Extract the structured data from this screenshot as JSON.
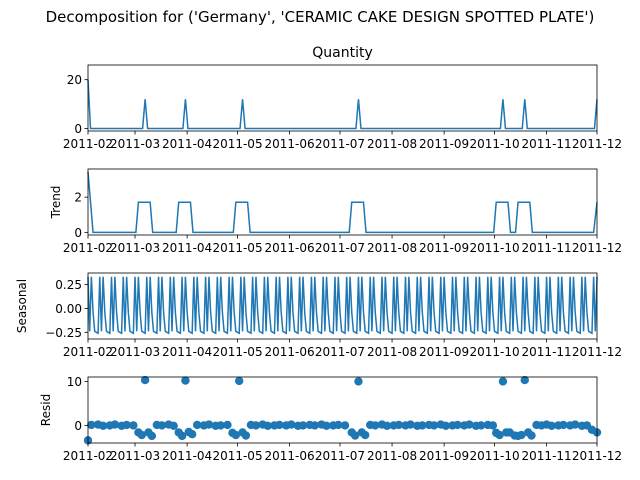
{
  "title": "Decomposition for ('Germany', 'CERAMIC CAKE DESIGN SPOTTED PLATE')",
  "x_tick_labels": [
    "2011-02",
    "2011-03",
    "2011-04",
    "2011-05",
    "2011-06",
    "2011-07",
    "2011-08",
    "2011-09",
    "2011-10",
    "2011-11",
    "2011-12"
  ],
  "colors": {
    "series": "#1f77b4"
  },
  "chart_data": [
    {
      "type": "line",
      "title": "Quantity",
      "ylabel": "",
      "xlim": [
        "2011-02-01",
        "2011-12-01"
      ],
      "ylim": [
        -1,
        26
      ],
      "yticks": [
        0,
        20
      ],
      "ytick_labels": [
        "0",
        "20"
      ],
      "x": [
        "2011-02-01",
        "2011-03-07",
        "2011-03-31",
        "2011-05-04",
        "2011-07-12",
        "2011-10-06",
        "2011-10-19",
        "2011-12-01"
      ],
      "values": [
        20,
        12,
        12,
        12,
        12,
        12,
        12,
        12
      ],
      "note_baseline": 0
    },
    {
      "type": "line",
      "title": "",
      "ylabel": "Trend",
      "xlim": [
        "2011-02-01",
        "2011-12-01"
      ],
      "ylim": [
        -0.15,
        3.6
      ],
      "yticks": [
        0,
        2
      ],
      "ytick_labels": [
        "0",
        "2"
      ],
      "plateaus": [
        {
          "start": "2011-03-03",
          "end": "2011-03-10",
          "value": 1.71
        },
        {
          "start": "2011-03-27",
          "end": "2011-04-03",
          "value": 1.71
        },
        {
          "start": "2011-04-30",
          "end": "2011-05-07",
          "value": 1.71
        },
        {
          "start": "2011-07-08",
          "end": "2011-07-15",
          "value": 1.71
        },
        {
          "start": "2011-10-02",
          "end": "2011-10-09",
          "value": 1.71
        },
        {
          "start": "2011-10-15",
          "end": "2011-10-22",
          "value": 1.71
        }
      ],
      "start_value": 3.43,
      "end_value": 1.71
    },
    {
      "type": "line",
      "title": "",
      "ylabel": "Seasonal",
      "xlim": [
        "2011-02-01",
        "2011-12-01"
      ],
      "ylim": [
        -0.32,
        0.37
      ],
      "yticks": [
        -0.25,
        0.0,
        0.25
      ],
      "ytick_labels": [
        "−0.25",
        "0.00",
        "0.25"
      ],
      "period_days": 7,
      "weekly_pattern": [
        0.33,
        -0.24,
        0.33,
        -0.04,
        -0.24,
        -0.25,
        -0.26
      ]
    },
    {
      "type": "scatter",
      "title": "",
      "ylabel": "Resid",
      "xlim": [
        "2011-02-01",
        "2011-12-01"
      ],
      "ylim": [
        -4,
        11
      ],
      "yticks": [
        0,
        10
      ],
      "ytick_labels": [
        "0",
        "10"
      ],
      "x": [
        "2011-02-01",
        "2011-02-03",
        "2011-02-07",
        "2011-02-10",
        "2011-02-14",
        "2011-02-17",
        "2011-02-21",
        "2011-02-24",
        "2011-02-28",
        "2011-03-03",
        "2011-03-05",
        "2011-03-07",
        "2011-03-09",
        "2011-03-11",
        "2011-03-14",
        "2011-03-17",
        "2011-03-21",
        "2011-03-24",
        "2011-03-27",
        "2011-03-29",
        "2011-03-31",
        "2011-04-02",
        "2011-04-04",
        "2011-04-07",
        "2011-04-11",
        "2011-04-14",
        "2011-04-18",
        "2011-04-21",
        "2011-04-25",
        "2011-04-28",
        "2011-04-30",
        "2011-05-02",
        "2011-05-04",
        "2011-05-06",
        "2011-05-09",
        "2011-05-12",
        "2011-05-16",
        "2011-05-19",
        "2011-05-23",
        "2011-05-26",
        "2011-05-30",
        "2011-06-02",
        "2011-06-06",
        "2011-06-09",
        "2011-06-13",
        "2011-06-16",
        "2011-06-20",
        "2011-06-23",
        "2011-06-27",
        "2011-06-30",
        "2011-07-04",
        "2011-07-08",
        "2011-07-10",
        "2011-07-12",
        "2011-07-14",
        "2011-07-16",
        "2011-07-19",
        "2011-07-22",
        "2011-07-26",
        "2011-07-29",
        "2011-08-02",
        "2011-08-05",
        "2011-08-09",
        "2011-08-12",
        "2011-08-16",
        "2011-08-19",
        "2011-08-23",
        "2011-08-26",
        "2011-08-30",
        "2011-09-02",
        "2011-09-06",
        "2011-09-09",
        "2011-09-13",
        "2011-09-16",
        "2011-09-20",
        "2011-09-23",
        "2011-09-27",
        "2011-09-30",
        "2011-10-02",
        "2011-10-04",
        "2011-10-06",
        "2011-10-08",
        "2011-10-10",
        "2011-10-13",
        "2011-10-15",
        "2011-10-17",
        "2011-10-19",
        "2011-10-21",
        "2011-10-23",
        "2011-10-26",
        "2011-10-29",
        "2011-11-01",
        "2011-11-04",
        "2011-11-08",
        "2011-11-11",
        "2011-11-15",
        "2011-11-18",
        "2011-11-22",
        "2011-11-25",
        "2011-11-28",
        "2011-12-01"
      ],
      "values": [
        -3.4,
        0.1,
        0.2,
        -0.1,
        0.0,
        0.2,
        -0.1,
        0.1,
        0.0,
        -1.6,
        -2.2,
        10.3,
        -1.6,
        -2.4,
        0.1,
        0.0,
        0.2,
        -0.1,
        -1.6,
        -2.4,
        10.2,
        -1.5,
        -2.0,
        0.1,
        0.0,
        0.2,
        -0.1,
        0.0,
        0.1,
        -1.7,
        -2.2,
        10.1,
        -1.6,
        -2.3,
        0.1,
        0.0,
        0.2,
        -0.1,
        0.0,
        0.1,
        0.0,
        0.2,
        -0.1,
        0.0,
        0.1,
        0.0,
        0.2,
        -0.1,
        0.0,
        0.1,
        0.0,
        -1.6,
        -2.3,
        10.0,
        -1.6,
        -2.2,
        0.1,
        0.0,
        0.2,
        -0.1,
        0.0,
        0.1,
        0.0,
        0.2,
        -0.1,
        0.0,
        0.1,
        0.0,
        0.2,
        -0.1,
        0.0,
        0.1,
        0.0,
        0.2,
        -0.1,
        0.0,
        0.1,
        0.0,
        -1.7,
        -2.2,
        10.0,
        -1.6,
        -1.6,
        -2.3,
        -2.4,
        -2.2,
        10.3,
        -1.6,
        -2.3,
        0.1,
        0.0,
        0.2,
        -0.1,
        0.0,
        0.1,
        0.0,
        0.2,
        -0.1,
        0.0,
        -1.0,
        -1.6
      ]
    }
  ]
}
